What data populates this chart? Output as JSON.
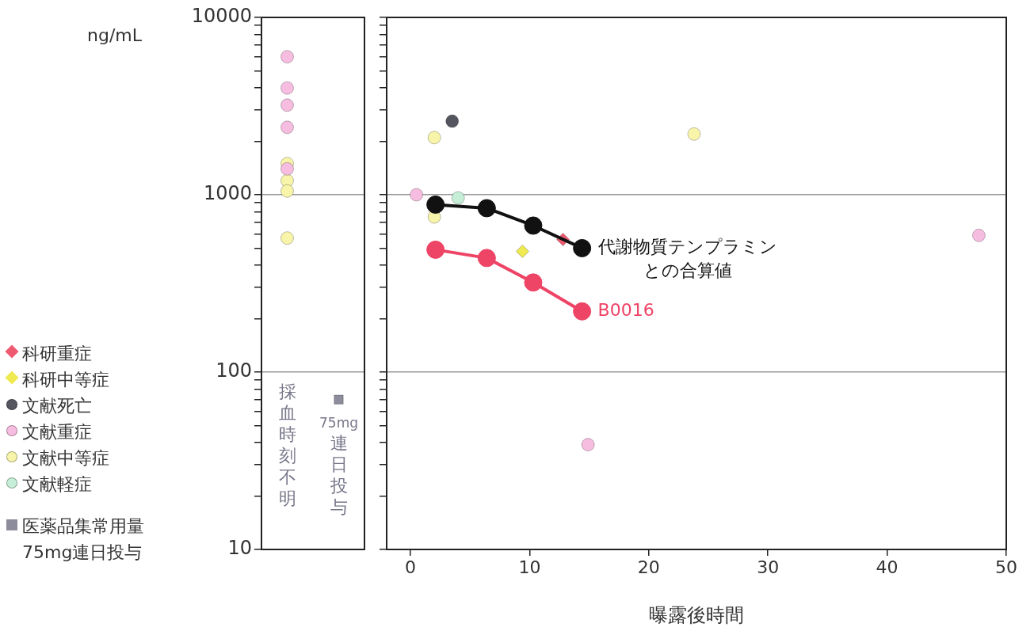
{
  "chart_data": [
    {
      "type": "scatter",
      "ylabel": "ng/mL",
      "categories": [
        "採血時刻不明",
        "75mg連日投与"
      ],
      "ylim": [
        10,
        10000
      ],
      "yticks": [
        10,
        {
          "value": 20,
          "label": null
        },
        {
          "value": 30,
          "label": null
        },
        {
          "value": 40,
          "label": null
        },
        {
          "value": 50,
          "label": null
        },
        {
          "value": 60,
          "label": null
        },
        {
          "value": 70,
          "label": null
        },
        {
          "value": 80,
          "label": null
        },
        {
          "value": 90,
          "label": null
        },
        100,
        {
          "value": 200,
          "label": null
        },
        {
          "value": 300,
          "label": null
        },
        {
          "value": 400,
          "label": null
        },
        {
          "value": 500,
          "label": null
        },
        {
          "value": 600,
          "label": null
        },
        {
          "value": 700,
          "label": null
        },
        {
          "value": 800,
          "label": null
        },
        {
          "value": 900,
          "label": null
        },
        1000,
        {
          "value": 2000,
          "label": null
        },
        {
          "value": 3000,
          "label": null
        },
        {
          "value": 4000,
          "label": null
        },
        {
          "value": 5000,
          "label": null
        },
        {
          "value": 6000,
          "label": null
        },
        {
          "value": 7000,
          "label": null
        },
        {
          "value": 8000,
          "label": null
        },
        {
          "value": 9000,
          "label": null
        },
        10000
      ],
      "grid": "y",
      "log": "y",
      "legend": "left",
      "series": [
        {
          "color": "#f7bde0",
          "marker": "circle",
          "x": [
            "採血時刻不明",
            "採血時刻不明",
            "採血時刻不明",
            "採血時刻不明",
            "採血時刻不明"
          ],
          "values": [
            6000,
            4000,
            3200,
            2400,
            1400
          ]
        },
        {
          "color": "#f8f5aa",
          "marker": "circle",
          "x": [
            "採血時刻不明",
            "採血時刻不明",
            "採血時刻不明",
            "採血時刻不明"
          ],
          "values": [
            1500,
            1200,
            1050,
            570
          ]
        },
        {
          "name": "医薬品集常用量 75mg連日投与",
          "color": "#8c8c9c",
          "marker": "square",
          "x": [
            "75mg連日投与"
          ],
          "values": [
            70
          ]
        }
      ]
    },
    {
      "type": "scatter",
      "xlabel": "曝露後時間",
      "xlim": [
        -2,
        50
      ],
      "xticks": [
        0,
        10,
        20,
        30,
        40,
        50
      ],
      "ylim": [
        10,
        10000
      ],
      "yticks": [
        10,
        {
          "value": 20,
          "label": null
        },
        {
          "value": 30,
          "label": null
        },
        {
          "value": 40,
          "label": null
        },
        {
          "value": 50,
          "label": null
        },
        {
          "value": 60,
          "label": null
        },
        {
          "value": 70,
          "label": null
        },
        {
          "value": 80,
          "label": null
        },
        {
          "value": 90,
          "label": null
        },
        100,
        {
          "value": 200,
          "label": null
        },
        {
          "value": 300,
          "label": null
        },
        {
          "value": 400,
          "label": null
        },
        {
          "value": 500,
          "label": null
        },
        {
          "value": 600,
          "label": null
        },
        {
          "value": 700,
          "label": null
        },
        {
          "value": 800,
          "label": null
        },
        {
          "value": 900,
          "label": null
        },
        1000,
        {
          "value": 2000,
          "label": null
        },
        {
          "value": 3000,
          "label": null
        },
        {
          "value": 4000,
          "label": null
        },
        {
          "value": 5000,
          "label": null
        },
        {
          "value": 6000,
          "label": null
        },
        {
          "value": 7000,
          "label": null
        },
        {
          "value": 8000,
          "label": null
        },
        {
          "value": 9000,
          "label": null
        },
        10000
      ],
      "tick_labels": "x",
      "grid": "y",
      "log": "y",
      "legend": "left",
      "series": [
        {
          "name": "科研重症",
          "color": "#ee5a70",
          "marker": "diamond",
          "x": [
            12.8
          ],
          "values": [
            560
          ]
        },
        {
          "name": "科研中等症",
          "color": "#eeea50",
          "marker": "diamond",
          "x": [
            9.4
          ],
          "values": [
            480
          ]
        },
        {
          "name": "文献死亡",
          "color": "#555560",
          "marker": "circle",
          "x": [
            3.5
          ],
          "values": [
            2600
          ]
        },
        {
          "name": "文献重症",
          "color": "#f7bde0",
          "marker": "circle",
          "x": [
            0.5,
            14.9,
            47.7
          ],
          "values": [
            1000,
            39,
            590
          ]
        },
        {
          "name": "文献中等症",
          "color": "#f8f5aa",
          "marker": "circle",
          "x": [
            2.0,
            2.0,
            23.8
          ],
          "values": [
            2100,
            750,
            2200
          ]
        },
        {
          "name": "文献軽症",
          "color": "#c6eed6",
          "marker": "circle",
          "x": [
            4.0
          ],
          "values": [
            960
          ]
        },
        {
          "type": "line",
          "name": "代謝物質テンプラミンとの合算値",
          "color": "#111111",
          "marker": "circle",
          "x": [
            2.1,
            6.4,
            10.3,
            14.4
          ],
          "values": [
            880,
            840,
            670,
            500
          ]
        },
        {
          "type": "line",
          "name": "B0016",
          "color": "#ee4466",
          "marker": "circle",
          "x": [
            2.1,
            6.4,
            10.3,
            14.4
          ],
          "values": [
            490,
            440,
            320,
            220
          ]
        }
      ]
    }
  ]
}
